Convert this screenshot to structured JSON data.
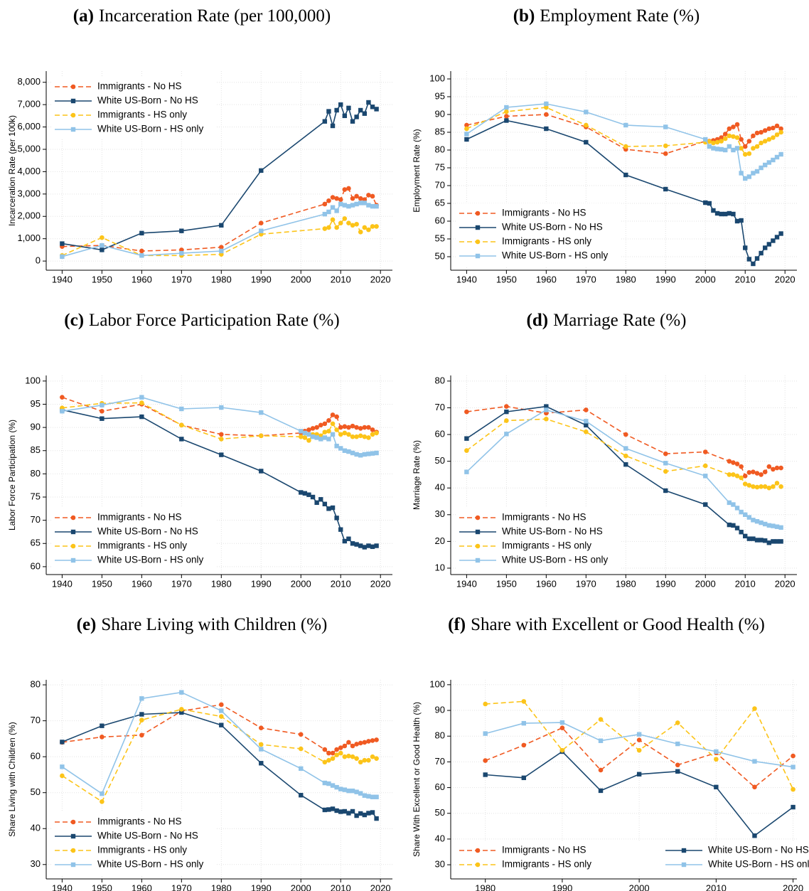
{
  "chart_data": [
    {
      "type": "line",
      "panel_label": "(a)",
      "title": "Incarceration Rate (per 100,000)",
      "ylabel": "Incarceration Rate (per 100k)",
      "x": [
        1940,
        1950,
        1960,
        1970,
        1980,
        1990,
        2006,
        2007,
        2008,
        2009,
        2010,
        2011,
        2012,
        2013,
        2014,
        2015,
        2016,
        2017,
        2018,
        2019
      ],
      "xlim": [
        1936,
        2023
      ],
      "xticks": [
        1940,
        1950,
        1960,
        1970,
        1980,
        1990,
        2000,
        2010,
        2020
      ],
      "ylim": [
        -410,
        8500
      ],
      "yticks": [
        0,
        {
          "value": 1000,
          "label": "1,000"
        },
        {
          "value": 2000,
          "label": "2,000"
        },
        {
          "value": 3000,
          "label": "3,000"
        },
        {
          "value": 4000,
          "label": "4,000"
        },
        {
          "value": 5000,
          "label": "5,000"
        },
        {
          "value": 6000,
          "label": "6,000"
        },
        {
          "value": 7000,
          "label": "7,000"
        },
        {
          "value": 8000,
          "label": "8,000"
        }
      ],
      "grid": true,
      "legend": "upper left",
      "legend_columns": 1,
      "series": [
        {
          "name": "Immigrants - No HS",
          "color": "#f05a22",
          "style": "dashed",
          "marker": "circle",
          "values": [
            650,
            700,
            450,
            500,
            620,
            1700,
            2550,
            2700,
            2850,
            2800,
            2750,
            3200,
            3250,
            2800,
            2900,
            2800,
            2750,
            2950,
            2900,
            2500
          ]
        },
        {
          "name": "White US-Born - No HS",
          "color": "#1a476f",
          "style": "solid",
          "marker": "square",
          "values": [
            780,
            500,
            1250,
            1350,
            1600,
            4050,
            6250,
            6700,
            6050,
            6750,
            7000,
            6500,
            6850,
            6250,
            6450,
            6750,
            6600,
            7100,
            6900,
            6800
          ]
        },
        {
          "name": "Immigrants - HS only",
          "color": "#fcc419",
          "style": "dashed",
          "marker": "circle",
          "values": [
            250,
            1050,
            250,
            250,
            300,
            1200,
            1450,
            1500,
            1850,
            1500,
            1700,
            1900,
            1700,
            1600,
            1650,
            1300,
            1500,
            1400,
            1550,
            1550
          ]
        },
        {
          "name": "White US-Born - HS only",
          "color": "#90c3e8",
          "style": "solid",
          "marker": "square",
          "values": [
            200,
            700,
            250,
            350,
            450,
            1350,
            2100,
            2200,
            2400,
            2250,
            2550,
            2500,
            2450,
            2500,
            2550,
            2600,
            2600,
            2500,
            2450,
            2450
          ]
        }
      ]
    },
    {
      "type": "line",
      "panel_label": "(b)",
      "title": "Employment Rate (%)",
      "ylabel": "Employment Rate (%)",
      "x": [
        1940,
        1950,
        1960,
        1970,
        1980,
        1990,
        2000,
        2001,
        2002,
        2003,
        2004,
        2005,
        2006,
        2007,
        2008,
        2009,
        2010,
        2011,
        2012,
        2013,
        2014,
        2015,
        2016,
        2017,
        2018,
        2019
      ],
      "xlim": [
        1936,
        2023
      ],
      "xticks": [
        1940,
        1950,
        1960,
        1970,
        1980,
        1990,
        2000,
        2010,
        2020
      ],
      "ylim": [
        46.2,
        102.2
      ],
      "yticks": [
        50,
        55,
        60,
        65,
        70,
        75,
        80,
        85,
        90,
        95,
        100
      ],
      "grid": true,
      "legend": "lower left",
      "legend_columns": 1,
      "series": [
        {
          "name": "Immigrants - No HS",
          "color": "#f05a22",
          "style": "dashed",
          "marker": "circle",
          "values": [
            87,
            89.5,
            90,
            86.5,
            80.2,
            79,
            82.5,
            82.5,
            82.7,
            83,
            83.5,
            84.5,
            86,
            86.5,
            87.2,
            83,
            81,
            82.5,
            84,
            84.8,
            85,
            85.5,
            86,
            86.2,
            86.8,
            86
          ]
        },
        {
          "name": "White US-Born - No HS",
          "color": "#1a476f",
          "style": "solid",
          "marker": "square",
          "values": [
            83,
            88.3,
            86,
            82.2,
            73,
            69,
            65.2,
            65,
            63,
            62.2,
            62,
            62,
            62.2,
            62,
            60,
            60.2,
            52.5,
            49.3,
            48,
            49.5,
            51,
            52.5,
            53.5,
            54.5,
            55.5,
            56.5
          ]
        },
        {
          "name": "Immigrants - HS only",
          "color": "#fcc419",
          "style": "dashed",
          "marker": "circle",
          "values": [
            86,
            90.8,
            92,
            87,
            81,
            81.2,
            82.2,
            82.4,
            82,
            82.2,
            82.5,
            83.2,
            84,
            83.8,
            83.5,
            80.5,
            78.8,
            79,
            80.5,
            81,
            82,
            82.5,
            83,
            83.5,
            84.3,
            85
          ]
        },
        {
          "name": "White US-Born - HS only",
          "color": "#90c3e8",
          "style": "solid",
          "marker": "square",
          "values": [
            84.5,
            92,
            93,
            90.7,
            87,
            86.5,
            83,
            81,
            80.5,
            80.3,
            80.2,
            80,
            81,
            80,
            80.5,
            73.5,
            72,
            72.5,
            73.5,
            74,
            75,
            75.8,
            76.5,
            77.2,
            78,
            78.8
          ]
        }
      ]
    },
    {
      "type": "line",
      "panel_label": "(c)",
      "title": "Labor Force Participation Rate (%)",
      "ylabel": "Labor Force Participation (%)",
      "x": [
        1940,
        1950,
        1960,
        1970,
        1980,
        1990,
        2000,
        2001,
        2002,
        2003,
        2004,
        2005,
        2006,
        2007,
        2008,
        2009,
        2010,
        2011,
        2012,
        2013,
        2014,
        2015,
        2016,
        2017,
        2018,
        2019
      ],
      "xlim": [
        1936,
        2023
      ],
      "xticks": [
        1940,
        1950,
        1960,
        1970,
        1980,
        1990,
        2000,
        2010,
        2020
      ],
      "ylim": [
        58.3,
        101.2
      ],
      "yticks": [
        60,
        65,
        70,
        75,
        80,
        85,
        90,
        95,
        100
      ],
      "grid": true,
      "legend": "lower left",
      "legend_columns": 1,
      "series": [
        {
          "name": "Immigrants - No HS",
          "color": "#f05a22",
          "style": "dashed",
          "marker": "circle",
          "values": [
            96.5,
            93.5,
            95,
            90.5,
            88.5,
            88.2,
            88.8,
            89.2,
            89.5,
            89.8,
            90,
            90.5,
            90.8,
            91.5,
            92.7,
            92.3,
            90,
            90.2,
            90,
            90.3,
            90,
            89.8,
            90,
            90,
            89.5,
            89
          ]
        },
        {
          "name": "White US-Born - No HS",
          "color": "#1a476f",
          "style": "solid",
          "marker": "square",
          "values": [
            93.8,
            91.9,
            92.3,
            87.5,
            84.1,
            80.6,
            76,
            75.8,
            75.5,
            75,
            73.8,
            74.5,
            73.5,
            72.5,
            72.7,
            70.5,
            68,
            65.5,
            66,
            65,
            64.8,
            64.5,
            64.2,
            64.5,
            64.3,
            64.5
          ]
        },
        {
          "name": "Immigrants - HS only",
          "color": "#fcc419",
          "style": "dashed",
          "marker": "circle",
          "values": [
            94.2,
            95.2,
            95.3,
            90.5,
            87.5,
            88.2,
            88,
            87.8,
            87.2,
            88.5,
            88.5,
            88.2,
            89,
            89.2,
            90.8,
            89.5,
            88.5,
            88.8,
            88.5,
            88,
            88,
            88.2,
            88,
            87.8,
            88.5,
            88.8
          ]
        },
        {
          "name": "White US-Born - HS only",
          "color": "#90c3e8",
          "style": "solid",
          "marker": "square",
          "values": [
            93.5,
            94.8,
            96.5,
            94,
            94.3,
            93.2,
            89.2,
            88.8,
            88.5,
            88,
            87.8,
            87.5,
            87.8,
            87.5,
            88.5,
            86,
            85.5,
            85,
            84.8,
            84.5,
            84.2,
            84,
            84.2,
            84.3,
            84.4,
            84.5
          ]
        }
      ]
    },
    {
      "type": "line",
      "panel_label": "(d)",
      "title": "Marriage Rate (%)",
      "ylabel": "Marriage Rate (%)",
      "x": [
        1940,
        1950,
        1960,
        1970,
        1980,
        1990,
        2000,
        2006,
        2007,
        2008,
        2009,
        2010,
        2011,
        2012,
        2013,
        2014,
        2015,
        2016,
        2017,
        2018,
        2019
      ],
      "xlim": [
        1936,
        2023
      ],
      "xticks": [
        1940,
        1950,
        1960,
        1970,
        1980,
        1990,
        2000,
        2010,
        2020
      ],
      "ylim": [
        7.6,
        82.1
      ],
      "yticks": [
        10,
        20,
        30,
        40,
        50,
        60,
        70,
        80
      ],
      "grid": true,
      "legend": "lower left",
      "legend_columns": 1,
      "series": [
        {
          "name": "Immigrants - No HS",
          "color": "#f05a22",
          "style": "dashed",
          "marker": "circle",
          "values": [
            68.5,
            70.5,
            68,
            69.2,
            60,
            52.8,
            53.5,
            50,
            49.5,
            49,
            48,
            44.5,
            45.8,
            46,
            45.5,
            45,
            46,
            48,
            47,
            47.5,
            47.5
          ]
        },
        {
          "name": "White US-Born - No HS",
          "color": "#1a476f",
          "style": "solid",
          "marker": "square",
          "values": [
            58.5,
            68.5,
            70.5,
            63.5,
            48.8,
            39,
            33.8,
            26.2,
            26,
            25,
            23.5,
            22,
            21,
            21,
            20.5,
            20.5,
            20.3,
            19.5,
            20,
            20,
            20
          ]
        },
        {
          "name": "Immigrants - HS only",
          "color": "#fcc419",
          "style": "dashed",
          "marker": "circle",
          "values": [
            54,
            65.2,
            65.8,
            61,
            52,
            46.2,
            48.3,
            45,
            45,
            44.5,
            43.8,
            41.5,
            41,
            40.5,
            40.3,
            40.5,
            40.5,
            40,
            40.5,
            41.8,
            40.5
          ]
        },
        {
          "name": "White US-Born - HS only",
          "color": "#90c3e8",
          "style": "solid",
          "marker": "square",
          "values": [
            46,
            60.2,
            69.2,
            65,
            54.8,
            49.3,
            44.5,
            34.5,
            33.8,
            32.5,
            31,
            30,
            29,
            28,
            27.5,
            27,
            26.5,
            26,
            25.8,
            25.5,
            25.2
          ]
        }
      ]
    },
    {
      "type": "line",
      "panel_label": "(e)",
      "title": "Share Living with Children (%)",
      "ylabel": "Share Living with Children (%)",
      "x": [
        1940,
        1950,
        1960,
        1970,
        1980,
        1990,
        2000,
        2006,
        2007,
        2008,
        2009,
        2010,
        2011,
        2012,
        2013,
        2014,
        2015,
        2016,
        2017,
        2018,
        2019
      ],
      "xlim": [
        1936,
        2023
      ],
      "xticks": [
        1940,
        1950,
        1960,
        1970,
        1980,
        1990,
        2000,
        2010,
        2020
      ],
      "ylim": [
        26,
        81.4
      ],
      "yticks": [
        30,
        40,
        50,
        60,
        70,
        80
      ],
      "grid": true,
      "legend": "lower left",
      "legend_columns": 1,
      "series": [
        {
          "name": "Immigrants - No HS",
          "color": "#f05a22",
          "style": "dashed",
          "marker": "circle",
          "values": [
            64,
            65.5,
            66,
            72.7,
            74.5,
            68,
            66.2,
            62,
            61,
            61,
            62,
            62.5,
            63,
            64,
            63,
            63.5,
            63.8,
            64,
            64.3,
            64.5,
            64.7
          ]
        },
        {
          "name": "White US-Born - No HS",
          "color": "#1a476f",
          "style": "solid",
          "marker": "square",
          "values": [
            64.1,
            68.6,
            71.8,
            72.3,
            68.8,
            58.2,
            49.3,
            45.2,
            45.3,
            45.5,
            45,
            44.7,
            44.8,
            44.3,
            44.8,
            43.6,
            44.2,
            43.8,
            44.3,
            44.5,
            42.8
          ]
        },
        {
          "name": "Immigrants - HS only",
          "color": "#fcc419",
          "style": "dashed",
          "marker": "circle",
          "values": [
            54.7,
            47.5,
            70.2,
            73.2,
            71.2,
            63.4,
            62.2,
            58.5,
            59,
            59.5,
            60.5,
            61,
            60,
            60.2,
            60,
            59.5,
            58.5,
            59,
            59,
            60,
            59.5
          ]
        },
        {
          "name": "White US-Born - HS only",
          "color": "#90c3e8",
          "style": "solid",
          "marker": "square",
          "values": [
            57.2,
            49.7,
            76.2,
            77.9,
            72.8,
            62.1,
            56.7,
            52.7,
            52.5,
            52,
            51.5,
            51,
            50.8,
            50.5,
            50.5,
            50.2,
            49.8,
            49.2,
            49,
            48.8,
            48.8
          ]
        }
      ]
    },
    {
      "type": "line",
      "panel_label": "(f)",
      "title": "Share with Excellent or Good Health (%)",
      "ylabel": "Share With Excellent or Good Health (%)",
      "x": [
        1980,
        1985,
        1990,
        1995,
        2000,
        2005,
        2010,
        2015,
        2020
      ],
      "xlim": [
        1975.5,
        2020.5
      ],
      "xticks": [
        1980,
        1990,
        2000,
        2010,
        2020
      ],
      "ylim": [
        24.5,
        101.9
      ],
      "yticks": [
        30,
        40,
        50,
        60,
        70,
        80,
        90,
        100
      ],
      "grid": true,
      "legend": "lower left",
      "legend_columns": 2,
      "series": [
        {
          "name": "Immigrants - No HS",
          "color": "#f05a22",
          "style": "dashed",
          "marker": "circle",
          "values": [
            70.5,
            76.5,
            83.2,
            66.8,
            78.5,
            68.8,
            73.5,
            60.2,
            72.3
          ]
        },
        {
          "name": "White US-Born - No HS",
          "color": "#1a476f",
          "style": "solid",
          "marker": "square",
          "values": [
            65,
            63.8,
            74,
            58.8,
            65.2,
            66.3,
            60.2,
            41.3,
            52.4
          ]
        },
        {
          "name": "Immigrants - HS only",
          "color": "#fcc419",
          "style": "dashed",
          "marker": "circle",
          "values": [
            92.5,
            93.5,
            74.5,
            86.5,
            74.5,
            85.2,
            71,
            90.7,
            59.3
          ]
        },
        {
          "name": "White US-Born - HS only",
          "color": "#90c3e8",
          "style": "solid",
          "marker": "square",
          "values": [
            81,
            85,
            85.3,
            78.2,
            80.7,
            77,
            74,
            70.2,
            68
          ]
        }
      ]
    }
  ]
}
